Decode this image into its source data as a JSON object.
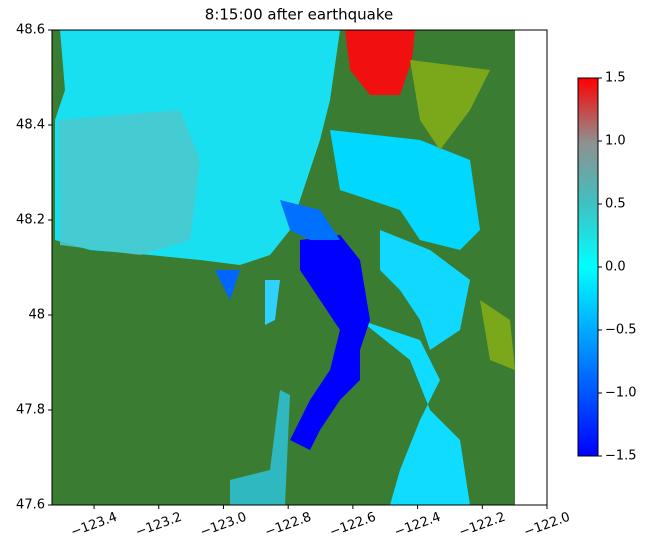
{
  "chart_data": {
    "type": "heatmap",
    "title": "8:15:00 after earthquake",
    "xlim": [
      -123.53,
      -122.0
    ],
    "xticks": [
      {
        "value": -123.4,
        "label": "−123.4"
      },
      {
        "value": -123.2,
        "label": "−123.2"
      },
      {
        "value": -123.0,
        "label": "−123.0"
      },
      {
        "value": -122.8,
        "label": "−122.8"
      },
      {
        "value": -122.6,
        "label": "−122.6"
      },
      {
        "value": -122.4,
        "label": "−122.4"
      },
      {
        "value": -122.2,
        "label": "−122.2"
      },
      {
        "value": -122.0,
        "label": "−122.0"
      }
    ],
    "ylim": [
      47.6,
      48.6
    ],
    "yticks": [
      47.6,
      47.8,
      48.0,
      48.2,
      48.4,
      48.6
    ],
    "colorbar": {
      "lim": [
        -1.5,
        1.5
      ],
      "ticks": [
        {
          "value": -1.5,
          "label": "−1.5"
        },
        {
          "value": -1.0,
          "label": "−1.0"
        },
        {
          "value": -0.5,
          "label": "−0.5"
        },
        {
          "value": 0.0,
          "label": "0.0"
        },
        0.5,
        {
          "value": 1.0,
          "label": "1.0"
        },
        1.5
      ]
    }
  }
}
